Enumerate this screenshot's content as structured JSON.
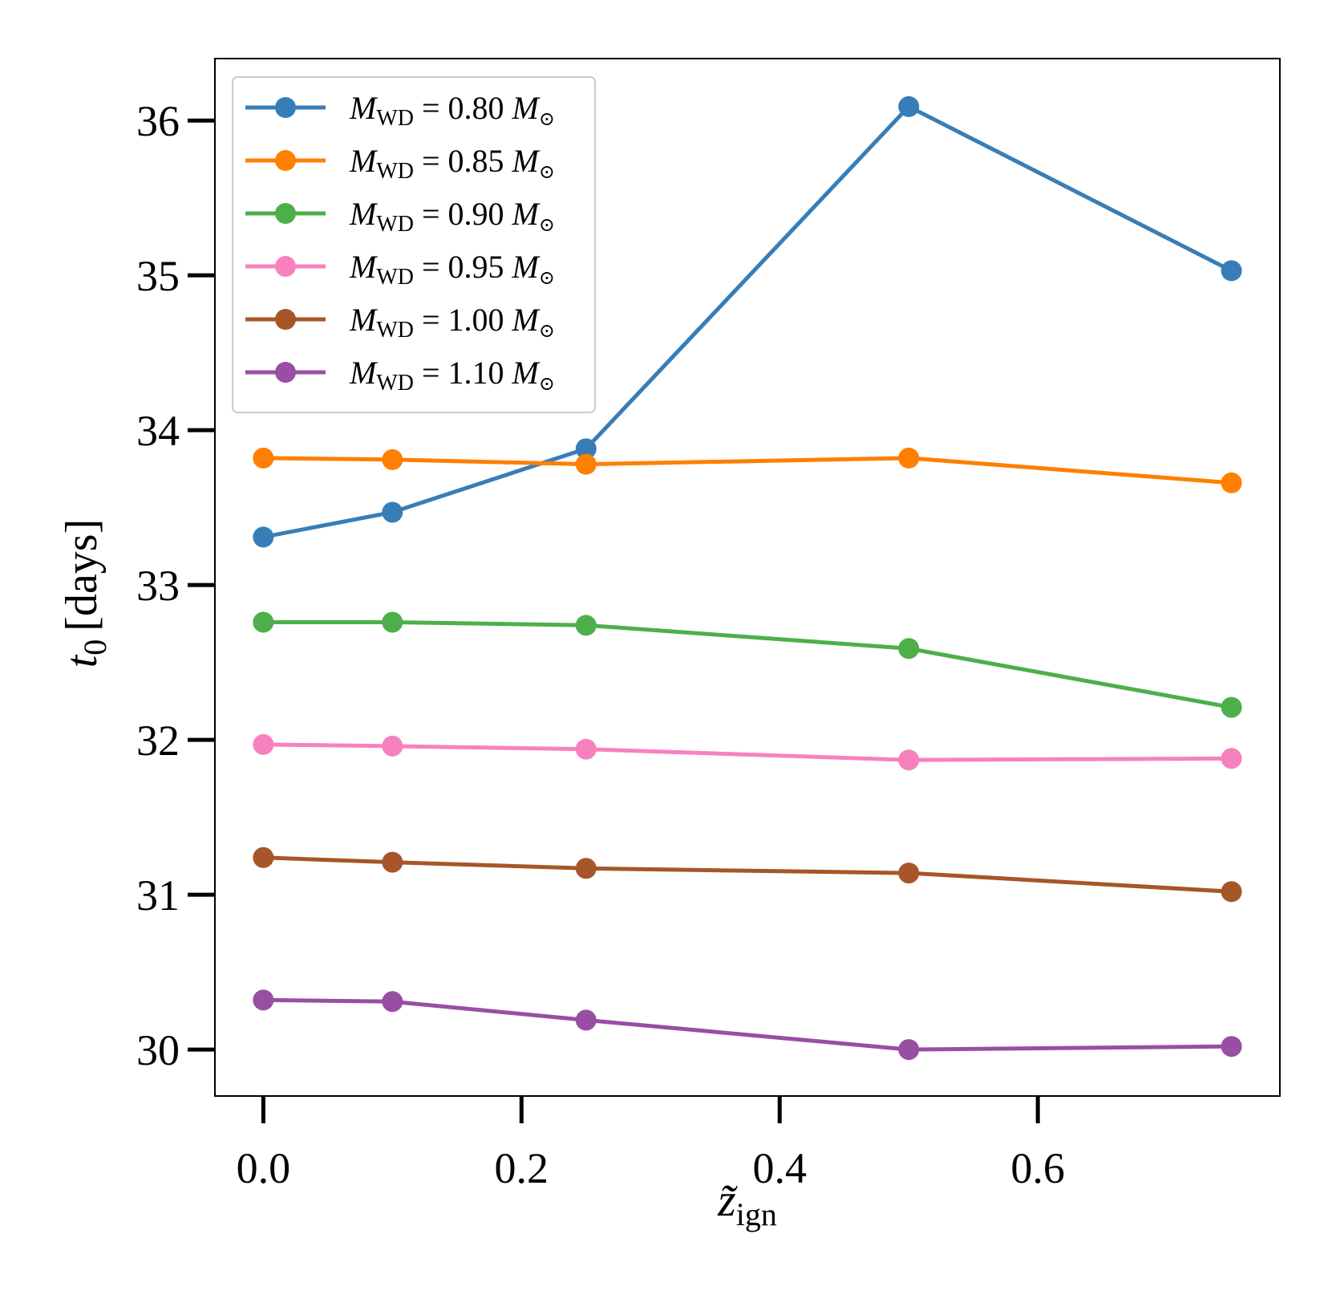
{
  "chart_data": {
    "type": "line",
    "title": "",
    "xlabel": {
      "main": "z̃",
      "sub": "ign"
    },
    "ylabel": {
      "main": "t",
      "sub": "0",
      "unit": "[days]"
    },
    "xlim": [
      -0.0375,
      0.7875
    ],
    "ylim": [
      29.7,
      36.4
    ],
    "xticks": [
      "0.0",
      "0.2",
      "0.4",
      "0.6"
    ],
    "xtick_values": [
      0.0,
      0.2,
      0.4,
      0.6
    ],
    "yticks": [
      "30",
      "31",
      "32",
      "33",
      "34",
      "35",
      "36"
    ],
    "ytick_values": [
      30,
      31,
      32,
      33,
      34,
      35,
      36
    ],
    "grid": false,
    "legend_position": "upper-left",
    "x": [
      0.0,
      0.1,
      0.25,
      0.5,
      0.75
    ],
    "series": [
      {
        "name": "M_WD = 0.80 M_⊙",
        "legend_main": "M",
        "legend_sub": "WD",
        "legend_eq": " = 0.80 ",
        "legend_unit": "M",
        "legend_unit_sub": "⊙",
        "color": "#377eb8",
        "values": [
          33.31,
          33.47,
          33.88,
          36.09,
          35.03
        ]
      },
      {
        "name": "M_WD = 0.85 M_⊙",
        "legend_main": "M",
        "legend_sub": "WD",
        "legend_eq": " = 0.85 ",
        "legend_unit": "M",
        "legend_unit_sub": "⊙",
        "color": "#ff7f00",
        "values": [
          33.82,
          33.81,
          33.78,
          33.82,
          33.66
        ]
      },
      {
        "name": "M_WD = 0.90 M_⊙",
        "legend_main": "M",
        "legend_sub": "WD",
        "legend_eq": " = 0.90 ",
        "legend_unit": "M",
        "legend_unit_sub": "⊙",
        "color": "#4daf4a",
        "values": [
          32.76,
          32.76,
          32.74,
          32.59,
          32.21
        ]
      },
      {
        "name": "M_WD = 0.95 M_⊙",
        "legend_main": "M",
        "legend_sub": "WD",
        "legend_eq": " = 0.95 ",
        "legend_unit": "M",
        "legend_unit_sub": "⊙",
        "color": "#f781bf",
        "values": [
          31.97,
          31.96,
          31.94,
          31.87,
          31.88
        ]
      },
      {
        "name": "M_WD = 1.00 M_⊙",
        "legend_main": "M",
        "legend_sub": "WD",
        "legend_eq": " = 1.00 ",
        "legend_unit": "M",
        "legend_unit_sub": "⊙",
        "color": "#a65628",
        "values": [
          31.24,
          31.21,
          31.17,
          31.14,
          31.02
        ]
      },
      {
        "name": "M_WD = 1.10 M_⊙",
        "legend_main": "M",
        "legend_sub": "WD",
        "legend_eq": " = 1.10 ",
        "legend_unit": "M",
        "legend_unit_sub": "⊙",
        "color": "#984ea3",
        "values": [
          30.32,
          30.31,
          30.19,
          30.0,
          30.02
        ]
      }
    ]
  }
}
